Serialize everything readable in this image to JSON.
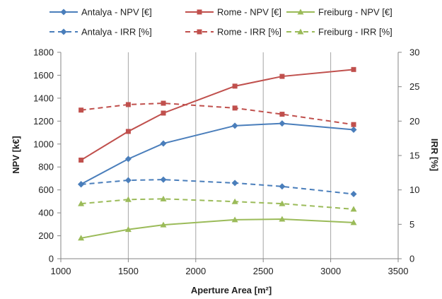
{
  "chart_data": {
    "type": "line",
    "title": "",
    "xlabel": "Aperture Area [m²]",
    "ylabel": "NPV [k€]",
    "y2label": "IRR [%]",
    "xlim": [
      1000,
      3500
    ],
    "ylim": [
      0,
      1800
    ],
    "y2lim": [
      0,
      30
    ],
    "xticks": [
      1000,
      1500,
      2000,
      2500,
      3000,
      3500
    ],
    "yticks": [
      0,
      200,
      400,
      600,
      800,
      1000,
      1200,
      1400,
      1600,
      1800
    ],
    "y2ticks": [
      0,
      5,
      10,
      15,
      20,
      25,
      30
    ],
    "grid": "vertical",
    "legend_position": "top",
    "x": [
      1150,
      1500,
      1760,
      2290,
      2640,
      3170
    ],
    "series": [
      {
        "name": "Antalya -  NPV [€]",
        "axis": "left",
        "dash": "solid",
        "marker": "diamond",
        "color": "#4a7ebb",
        "values": [
          650,
          870,
          1005,
          1160,
          1180,
          1125
        ]
      },
      {
        "name": "Rome -  NPV [€]",
        "axis": "left",
        "dash": "solid",
        "marker": "square",
        "color": "#c0504d",
        "values": [
          860,
          1110,
          1270,
          1505,
          1590,
          1650
        ]
      },
      {
        "name": "Freiburg -  NPV [€]",
        "axis": "left",
        "dash": "solid",
        "marker": "triangle",
        "color": "#9bbb59",
        "values": [
          180,
          255,
          295,
          340,
          345,
          315
        ]
      },
      {
        "name": "Antalya -  IRR [%]",
        "axis": "right",
        "dash": "dashed",
        "marker": "diamond",
        "color": "#4a7ebb",
        "values": [
          10.8,
          11.4,
          11.5,
          11.0,
          10.5,
          9.4
        ]
      },
      {
        "name": "Rome -  IRR [%]",
        "axis": "right",
        "dash": "dashed",
        "marker": "square",
        "color": "#c0504d",
        "values": [
          21.6,
          22.4,
          22.6,
          21.9,
          21.0,
          19.5
        ]
      },
      {
        "name": "Freiburg -  IRR [%]",
        "axis": "right",
        "dash": "dashed",
        "marker": "triangle",
        "color": "#9bbb59",
        "values": [
          8.0,
          8.6,
          8.7,
          8.3,
          8.0,
          7.2
        ]
      }
    ]
  }
}
